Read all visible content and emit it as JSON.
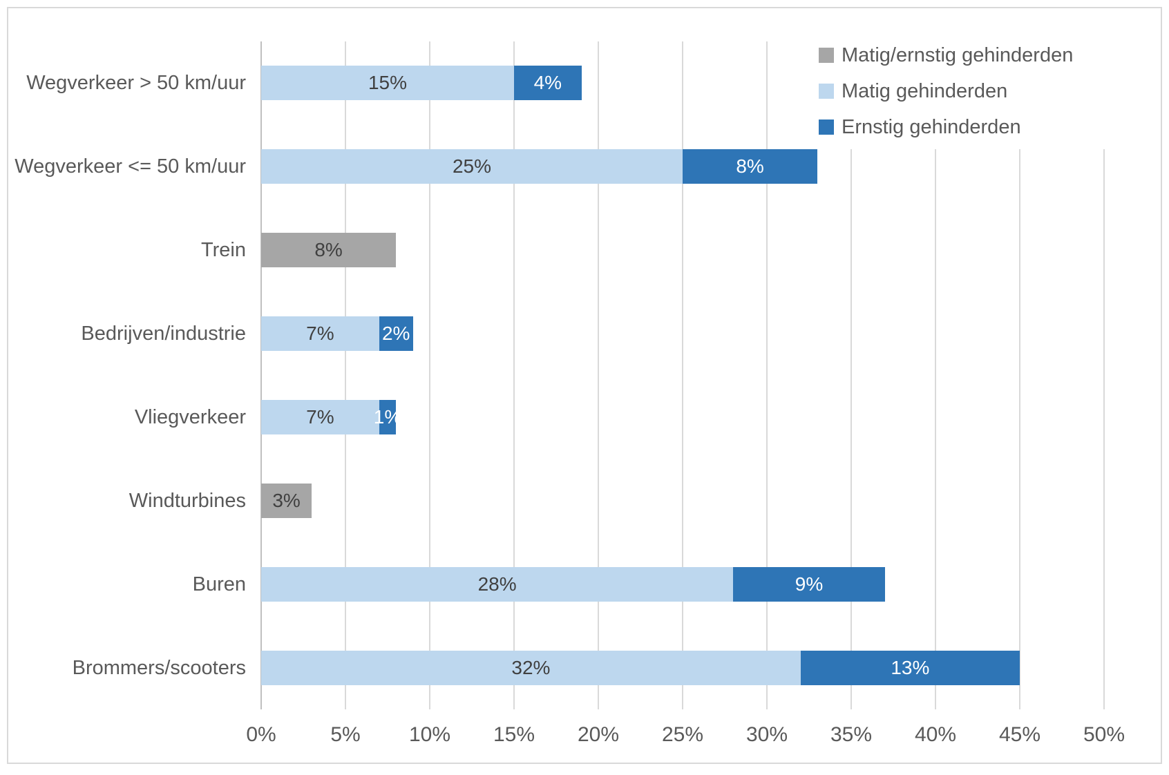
{
  "chart_data": {
    "type": "bar",
    "variant": "horizontal_stacked",
    "categories": [
      "Wegverkeer > 50 km/uur",
      "Wegverkeer <= 50 km/uur",
      "Trein",
      "Bedrijven/industrie",
      "Vliegverkeer",
      "Windturbines",
      "Buren",
      "Brommers/scooters"
    ],
    "series": [
      {
        "name": "Matig/ernstig gehinderden",
        "color": "#a6a6a6",
        "values": [
          null,
          null,
          8,
          null,
          null,
          3,
          null,
          null
        ]
      },
      {
        "name": "Matig gehinderden",
        "color": "#bdd7ee",
        "values": [
          15,
          25,
          null,
          7,
          7,
          null,
          28,
          32
        ]
      },
      {
        "name": "Ernstig gehinderden",
        "color": "#2e75b6",
        "values": [
          4,
          8,
          null,
          2,
          1,
          null,
          9,
          13
        ]
      }
    ],
    "xlim": [
      0,
      50
    ],
    "x_tick_labels": [
      "0%",
      "5%",
      "10%",
      "15%",
      "20%",
      "25%",
      "30%",
      "35%",
      "40%",
      "45%",
      "50%"
    ],
    "value_suffix": "%",
    "grid": "vertical",
    "legend_position": "top-right"
  },
  "colors": {
    "grid": "#d9d9d9",
    "axis": "#bfbfbf",
    "border": "#d9d9d9",
    "label_text": "#595959",
    "value_text": "#404040",
    "value_text_on_dark": "#ffffff",
    "dark_series_color": "#2e75b6"
  }
}
